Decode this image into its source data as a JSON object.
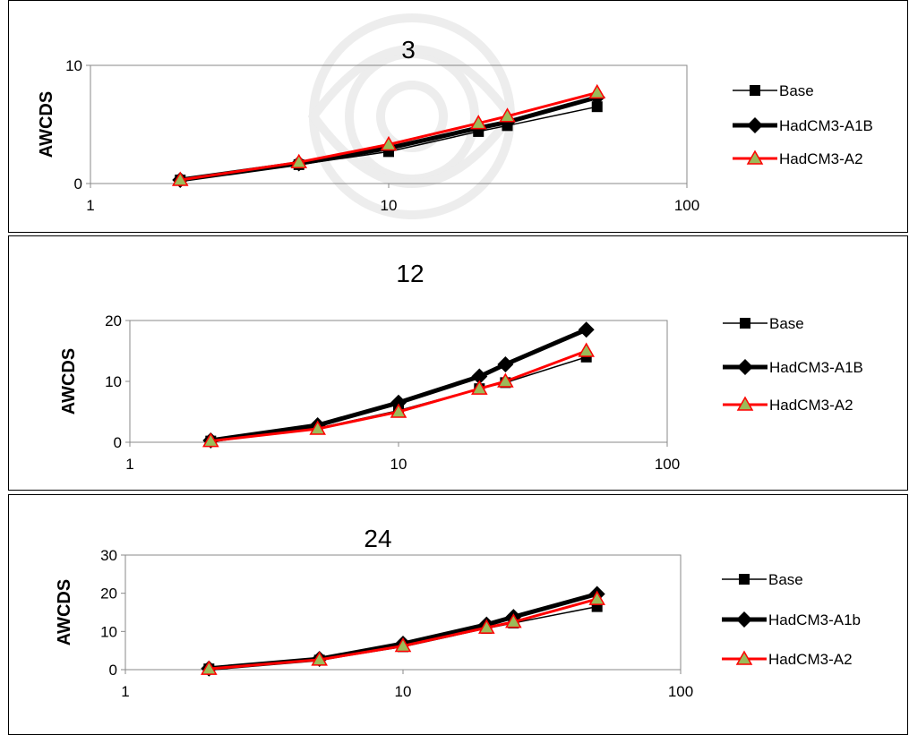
{
  "chart_data": [
    {
      "type": "line",
      "title": "3",
      "ylabel": "AWCDS",
      "xlabel": "",
      "x_scale": "log",
      "xlim": [
        1,
        100
      ],
      "ylim": [
        0,
        10
      ],
      "x_ticks": [
        1,
        10,
        100
      ],
      "y_ticks": [
        0,
        10
      ],
      "x": [
        2,
        5,
        10,
        20,
        25,
        50
      ],
      "legend_position": "right",
      "grid": false,
      "series": [
        {
          "name": "Base",
          "values": [
            0.3,
            1.6,
            2.7,
            4.4,
            4.9,
            6.5
          ],
          "color": "#000000",
          "marker": "square",
          "width": 1.5
        },
        {
          "name": "HadCM3-A1B",
          "values": [
            0.3,
            1.7,
            3.0,
            4.7,
            5.2,
            7.3
          ],
          "color": "#000000",
          "marker": "diamond",
          "width": 5
        },
        {
          "name": "HadCM3-A2",
          "values": [
            0.3,
            1.8,
            3.3,
            5.1,
            5.7,
            7.7
          ],
          "color": "#ff0000",
          "marker": "triangle",
          "width": 3
        }
      ]
    },
    {
      "type": "line",
      "title": "12",
      "ylabel": "AWCDS",
      "xlabel": "",
      "x_scale": "log",
      "xlim": [
        1,
        100
      ],
      "ylim": [
        0,
        20
      ],
      "x_ticks": [
        1,
        10,
        100
      ],
      "y_ticks": [
        0,
        10,
        20
      ],
      "x": [
        2,
        5,
        10,
        20,
        25,
        50
      ],
      "legend_position": "right",
      "grid": false,
      "series": [
        {
          "name": "Base",
          "values": [
            0.2,
            2.3,
            5.2,
            8.8,
            9.8,
            14.0
          ],
          "color": "#000000",
          "marker": "square",
          "width": 1.5
        },
        {
          "name": "HadCM3-A1B",
          "values": [
            0.3,
            2.8,
            6.5,
            10.8,
            12.8,
            18.5
          ],
          "color": "#000000",
          "marker": "diamond",
          "width": 5
        },
        {
          "name": "HadCM3-A2",
          "values": [
            0.2,
            2.2,
            5.0,
            8.8,
            10.0,
            15.0
          ],
          "color": "#ff0000",
          "marker": "triangle",
          "width": 3
        }
      ]
    },
    {
      "type": "line",
      "title": "24",
      "ylabel": "AWCDS",
      "xlabel": "",
      "x_scale": "log",
      "xlim": [
        1,
        100
      ],
      "ylim": [
        0,
        30
      ],
      "x_ticks": [
        1,
        10,
        100
      ],
      "y_ticks": [
        0,
        10,
        20,
        30
      ],
      "x": [
        2,
        5,
        10,
        20,
        25,
        50
      ],
      "legend_position": "right",
      "grid": false,
      "series": [
        {
          "name": "Base",
          "values": [
            0.2,
            2.5,
            6.0,
            10.8,
            12.2,
            16.5
          ],
          "color": "#000000",
          "marker": "square",
          "width": 1.5
        },
        {
          "name": "HadCM3-A1b",
          "values": [
            0.3,
            2.8,
            6.8,
            11.8,
            13.8,
            19.8
          ],
          "color": "#000000",
          "marker": "diamond",
          "width": 5
        },
        {
          "name": "HadCM3-A2",
          "values": [
            0.2,
            2.6,
            6.2,
            11.0,
            12.5,
            18.5
          ],
          "color": "#ff0000",
          "marker": "triangle",
          "width": 3
        }
      ]
    }
  ]
}
